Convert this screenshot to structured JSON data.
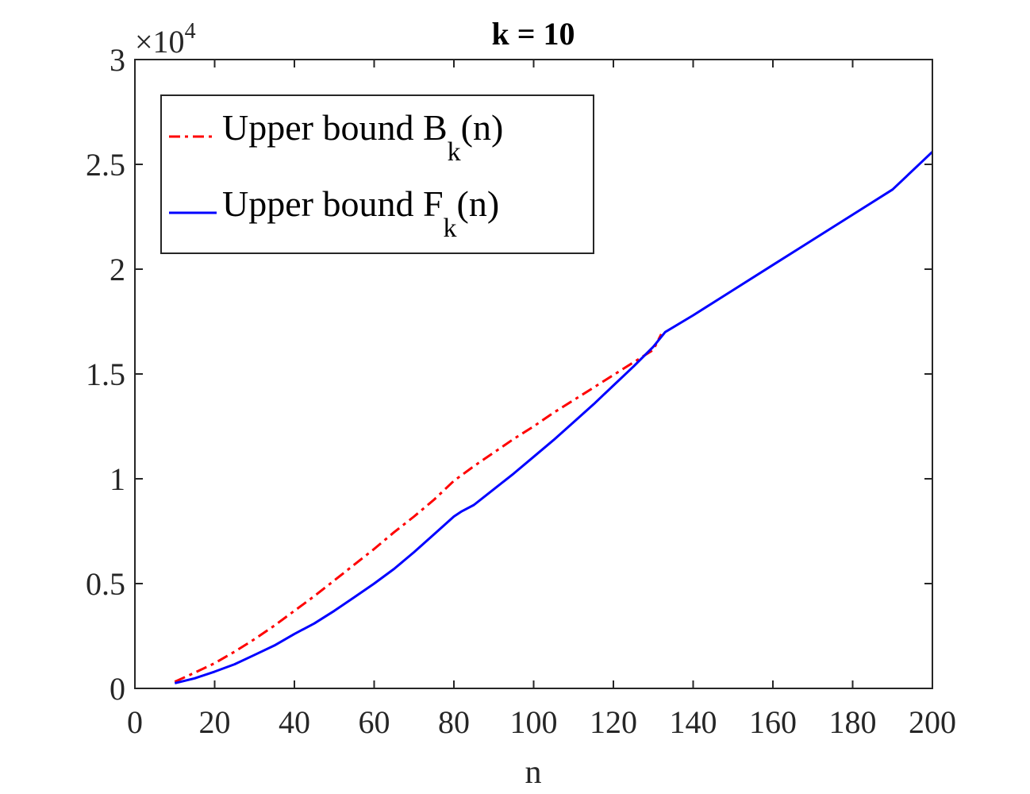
{
  "chart_data": {
    "type": "line",
    "title": "k = 10",
    "xlabel": "n",
    "ylabel": "",
    "xlim": [
      0,
      200
    ],
    "ylim": [
      0,
      30000
    ],
    "xticks": [
      0,
      20,
      40,
      60,
      80,
      100,
      120,
      140,
      160,
      180,
      200
    ],
    "yticks": [
      0,
      5000,
      10000,
      15000,
      20000,
      25000,
      30000
    ],
    "ytick_labels": [
      "0",
      "0.5",
      "1",
      "1.5",
      "2",
      "2.5",
      "3"
    ],
    "y_multiplier": {
      "base": "×10",
      "exponent": "4"
    },
    "grid": false,
    "legend_position": "top-left",
    "series": [
      {
        "name": "Upper bound B",
        "name_sub": "k",
        "name_suffix": "(n)",
        "color": "#ff0000",
        "style": "dash-dot",
        "x": [
          10,
          15,
          20,
          25,
          30,
          35,
          40,
          45,
          50,
          55,
          60,
          65,
          70,
          75,
          80,
          85,
          90,
          95,
          100,
          105,
          110,
          115,
          120,
          125,
          130,
          132
        ],
        "y": [
          320,
          750,
          1200,
          1750,
          2350,
          3000,
          3700,
          4400,
          5150,
          5900,
          6650,
          7450,
          8200,
          9000,
          9900,
          10600,
          11250,
          11900,
          12500,
          13150,
          13750,
          14350,
          14950,
          15550,
          16150,
          16900
        ]
      },
      {
        "name": "Upper bound F",
        "name_sub": "k",
        "name_suffix": "(n)",
        "color": "#0000ff",
        "style": "solid",
        "x": [
          10,
          15,
          20,
          25,
          30,
          35,
          40,
          45,
          50,
          55,
          60,
          65,
          70,
          75,
          80,
          82,
          85,
          90,
          95,
          100,
          105,
          110,
          115,
          120,
          125,
          130,
          133,
          140,
          150,
          160,
          170,
          180,
          190,
          200
        ],
        "y": [
          250,
          480,
          800,
          1150,
          1600,
          2050,
          2600,
          3100,
          3700,
          4350,
          5000,
          5700,
          6500,
          7350,
          8200,
          8450,
          8750,
          9500,
          10250,
          11050,
          11850,
          12700,
          13550,
          14450,
          15350,
          16300,
          17000,
          17800,
          19000,
          20200,
          21400,
          22600,
          23800,
          25600
        ]
      }
    ]
  }
}
